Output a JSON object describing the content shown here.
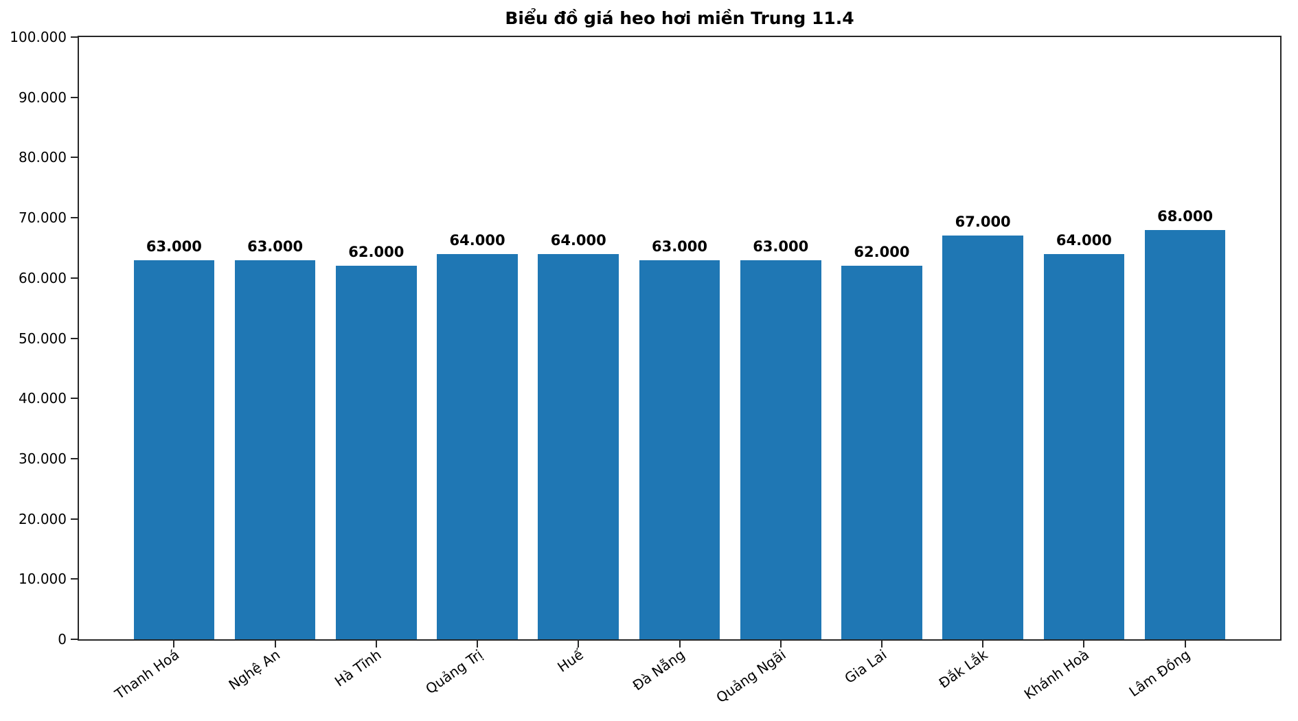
{
  "chart_data": {
    "type": "bar",
    "title": "Biểu đồ giá heo hơi miền Trung 11.4",
    "categories": [
      "Thanh Hoá",
      "Nghệ An",
      "Hà Tĩnh",
      "Quảng Trị",
      "Huế",
      "Đà Nẵng",
      "Quảng Ngãi",
      "Gia Lai",
      "Đắk Lắk",
      "Khánh Hoà",
      "Lâm Đồng"
    ],
    "values": [
      63000,
      63000,
      62000,
      64000,
      64000,
      63000,
      63000,
      62000,
      67000,
      64000,
      68000
    ],
    "bar_value_labels": [
      "63.000",
      "63.000",
      "62.000",
      "64.000",
      "64.000",
      "63.000",
      "63.000",
      "62.000",
      "67.000",
      "64.000",
      "68.000"
    ],
    "ytick_labels": [
      "0",
      "10.000",
      "20.000",
      "30.000",
      "40.000",
      "50.000",
      "60.000",
      "70.000",
      "80.000",
      "90.000",
      "100.000"
    ],
    "ytick_interval": 10000,
    "ylim": [
      0,
      100000
    ],
    "xlabel": "",
    "ylabel": "",
    "grid": false,
    "legend": "none",
    "bar_color": "#1f77b4",
    "axis_color": "#262626",
    "x_tick_rotation_deg": 35
  }
}
